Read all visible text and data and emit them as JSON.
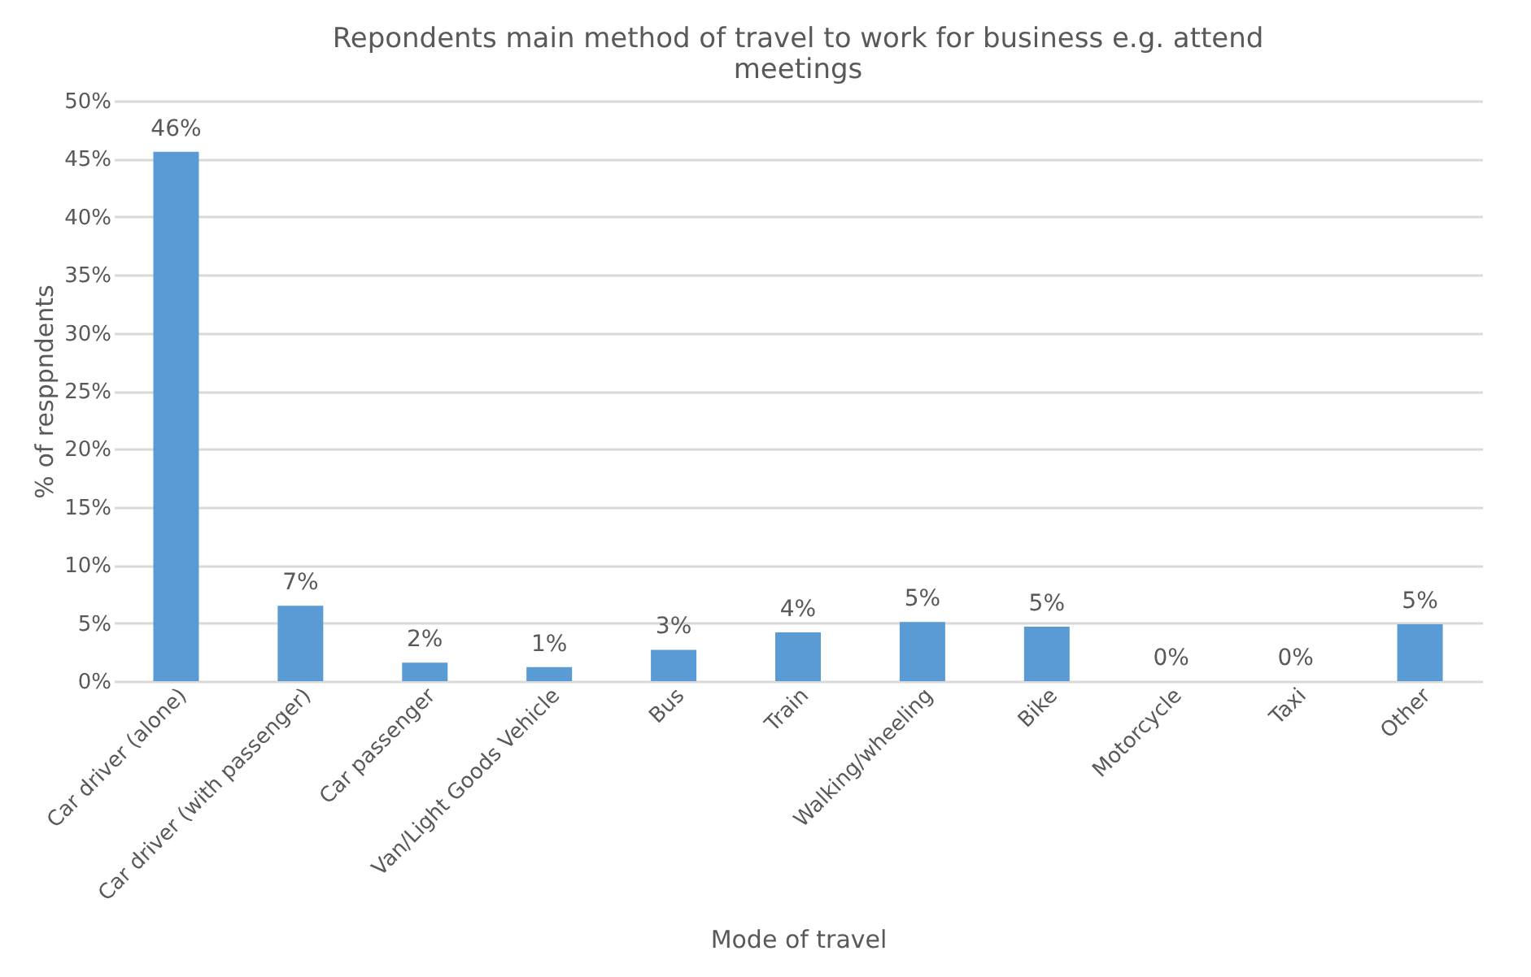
{
  "chart_data": {
    "type": "bar",
    "title": [
      "Repondents main method of travel to work for business e.g. attend",
      "meetings"
    ],
    "xlabel": "Mode of travel",
    "ylabel": "% of resppndents",
    "categories": [
      "Car driver (alone)",
      "Car driver (with passenger)",
      "Car passenger",
      "Van/Light Goods Vehicle",
      "Bus",
      "Train",
      "Walking/wheeling",
      "Bike",
      "Motorcycle",
      "Taxi",
      "Other"
    ],
    "values": [
      45.6,
      6.5,
      1.6,
      1.2,
      2.7,
      4.2,
      5.1,
      4.7,
      0,
      0,
      4.9
    ],
    "value_labels": [
      "46%",
      "7%",
      "2%",
      "1%",
      "3%",
      "4%",
      "5%",
      "5%",
      "0%",
      "0%",
      "5%"
    ],
    "color": "#5b9bd5",
    "ylim": [
      0,
      50
    ],
    "yticks": [
      {
        "value": 0,
        "label": "0%"
      },
      {
        "value": 5,
        "label": "5%"
      },
      {
        "value": 10,
        "label": "10%"
      },
      {
        "value": 15,
        "label": "15%"
      },
      {
        "value": 20,
        "label": "20%"
      },
      {
        "value": 25,
        "label": "25%"
      },
      {
        "value": 30,
        "label": "30%"
      },
      {
        "value": 35,
        "label": "35%"
      },
      {
        "value": 40,
        "label": "40%"
      },
      {
        "value": 45,
        "label": "45%"
      },
      {
        "value": 50,
        "label": "50%"
      }
    ],
    "grid": "y"
  }
}
